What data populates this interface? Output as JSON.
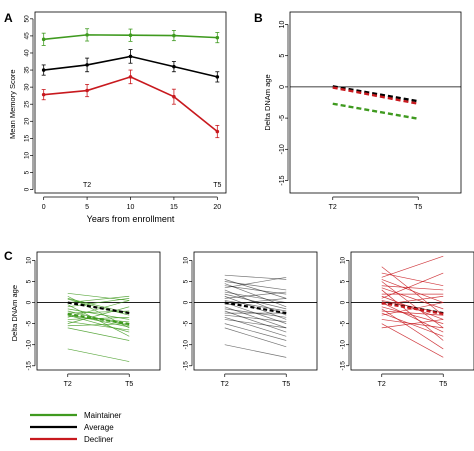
{
  "colors": {
    "maintainer": "#3f9a1f",
    "average": "#000000",
    "decliner": "#c8191e"
  },
  "legend": [
    {
      "name": "Maintainer",
      "color_key": "maintainer"
    },
    {
      "name": "Average",
      "color_key": "average"
    },
    {
      "name": "Decliner",
      "color_key": "decliner"
    }
  ],
  "chart_data": [
    {
      "panel": "A",
      "type": "line",
      "xlabel": "Years from enrollment",
      "ylabel": "Mean Memory Score",
      "x": [
        0,
        5,
        10,
        15,
        20
      ],
      "xticks": [
        0,
        5,
        10,
        15,
        20
      ],
      "yticks": [
        0,
        5,
        10,
        15,
        20,
        25,
        30,
        35,
        40,
        45,
        50
      ],
      "xlim": [
        -1,
        21
      ],
      "ylim": [
        -1,
        52
      ],
      "annotations": [
        {
          "text": "T2",
          "x": 5
        },
        {
          "text": "T5",
          "x": 20
        }
      ],
      "series": [
        {
          "name": "Maintainer",
          "color_key": "maintainer",
          "values": [
            44,
            45.3,
            45.2,
            45.1,
            44.5
          ],
          "err": [
            1.8,
            1.8,
            1.8,
            1.5,
            1.5
          ]
        },
        {
          "name": "Average",
          "color_key": "average",
          "values": [
            35,
            36.5,
            39,
            36,
            33
          ],
          "err": [
            1.5,
            2,
            2,
            1.5,
            1.5
          ]
        },
        {
          "name": "Decliner",
          "color_key": "decliner",
          "values": [
            27.8,
            29,
            33,
            27.2,
            17
          ],
          "err": [
            1.5,
            1.8,
            2,
            2.2,
            1.8
          ]
        }
      ],
      "grid": false
    },
    {
      "panel": "B",
      "type": "line",
      "xlabel": "",
      "ylabel": "Delta DNAm age",
      "categories": [
        "T2",
        "T5"
      ],
      "yticks": [
        -15,
        -10,
        -5,
        0,
        5,
        10
      ],
      "ylim": [
        -17,
        12
      ],
      "hline": 0,
      "series": [
        {
          "name": "Maintainer",
          "color_key": "maintainer",
          "values": [
            -2.7,
            -5.1
          ],
          "dashed": true
        },
        {
          "name": "Average",
          "color_key": "average",
          "values": [
            0.1,
            -2.3
          ],
          "dashed": true
        },
        {
          "name": "Decliner",
          "color_key": "decliner",
          "values": [
            -0.1,
            -2.7
          ],
          "dashed": true
        }
      ]
    },
    {
      "panel": "C",
      "type": "line",
      "group": "Maintainer",
      "color_key": "maintainer",
      "ylabel": "Delta DNAm age",
      "categories": [
        "T2",
        "T5"
      ],
      "yticks": [
        -15,
        -10,
        -5,
        0,
        5,
        10
      ],
      "ylim": [
        -16,
        12
      ],
      "hline": 0,
      "mean": [
        -2.7,
        -5.1
      ],
      "average": [
        0,
        -2.5
      ],
      "lines": [
        [
          2.2,
          0.5
        ],
        [
          1.5,
          -6
        ],
        [
          0.8,
          -3
        ],
        [
          0,
          1.5
        ],
        [
          -0.5,
          -8
        ],
        [
          -1,
          1
        ],
        [
          -1.5,
          -4
        ],
        [
          -2,
          -5.5
        ],
        [
          -2.5,
          -2
        ],
        [
          -3,
          -7
        ],
        [
          -3.5,
          0.5
        ],
        [
          -4,
          -3.5
        ],
        [
          -4.5,
          -6.5
        ],
        [
          -5,
          -1
        ],
        [
          -5.5,
          -5
        ],
        [
          -6,
          -9
        ],
        [
          -11,
          -14
        ],
        [
          1,
          -2.5
        ],
        [
          -2.8,
          -5.8
        ],
        [
          -3.2,
          -4.6
        ]
      ]
    },
    {
      "panel": "C",
      "type": "line",
      "group": "Average",
      "color_key": "average",
      "categories": [
        "T2",
        "T5"
      ],
      "yticks": [
        -15,
        -10,
        -5,
        0,
        5,
        10
      ],
      "ylim": [
        -16,
        12
      ],
      "hline": 0,
      "mean": [
        0.1,
        -2.3
      ],
      "average": [
        0,
        -2.5
      ],
      "lines": [
        [
          6.5,
          5.5
        ],
        [
          5.5,
          1
        ],
        [
          5,
          3
        ],
        [
          4.5,
          -1
        ],
        [
          4,
          2
        ],
        [
          3.5,
          6
        ],
        [
          3,
          -3
        ],
        [
          2.5,
          0
        ],
        [
          2,
          -1.5
        ],
        [
          1.5,
          -4
        ],
        [
          1,
          2.5
        ],
        [
          0.5,
          -2
        ],
        [
          0,
          -5
        ],
        [
          -0.5,
          1
        ],
        [
          -1,
          -6
        ],
        [
          -1.5,
          -3.5
        ],
        [
          -2,
          -7
        ],
        [
          -2.5,
          -2.5
        ],
        [
          -3,
          -4.5
        ],
        [
          -3.5,
          -8
        ],
        [
          -4,
          -6
        ],
        [
          -5,
          -9
        ],
        [
          -6,
          -10.5
        ],
        [
          -10,
          -13
        ]
      ]
    },
    {
      "panel": "C",
      "type": "line",
      "group": "Decliner",
      "color_key": "decliner",
      "categories": [
        "T2",
        "T5"
      ],
      "yticks": [
        -15,
        -10,
        -5,
        0,
        5,
        10
      ],
      "ylim": [
        -16,
        12
      ],
      "hline": 0,
      "mean": [
        -0.1,
        -2.7
      ],
      "average": [
        0,
        -2.5
      ],
      "lines": [
        [
          8.5,
          -3
        ],
        [
          7,
          4
        ],
        [
          6,
          11
        ],
        [
          5.5,
          0
        ],
        [
          5,
          -6
        ],
        [
          4,
          3
        ],
        [
          3.5,
          -1.5
        ],
        [
          3,
          -9
        ],
        [
          2,
          2
        ],
        [
          1.5,
          -4
        ],
        [
          1,
          7
        ],
        [
          0.5,
          -2.5
        ],
        [
          0,
          -7
        ],
        [
          -0.5,
          1.5
        ],
        [
          -1,
          -5
        ],
        [
          -1.5,
          -11
        ],
        [
          -2,
          -3
        ],
        [
          -2.5,
          -8
        ],
        [
          -3,
          0
        ],
        [
          -4,
          -6
        ],
        [
          -5,
          -13
        ],
        [
          -6,
          -4
        ]
      ]
    }
  ]
}
